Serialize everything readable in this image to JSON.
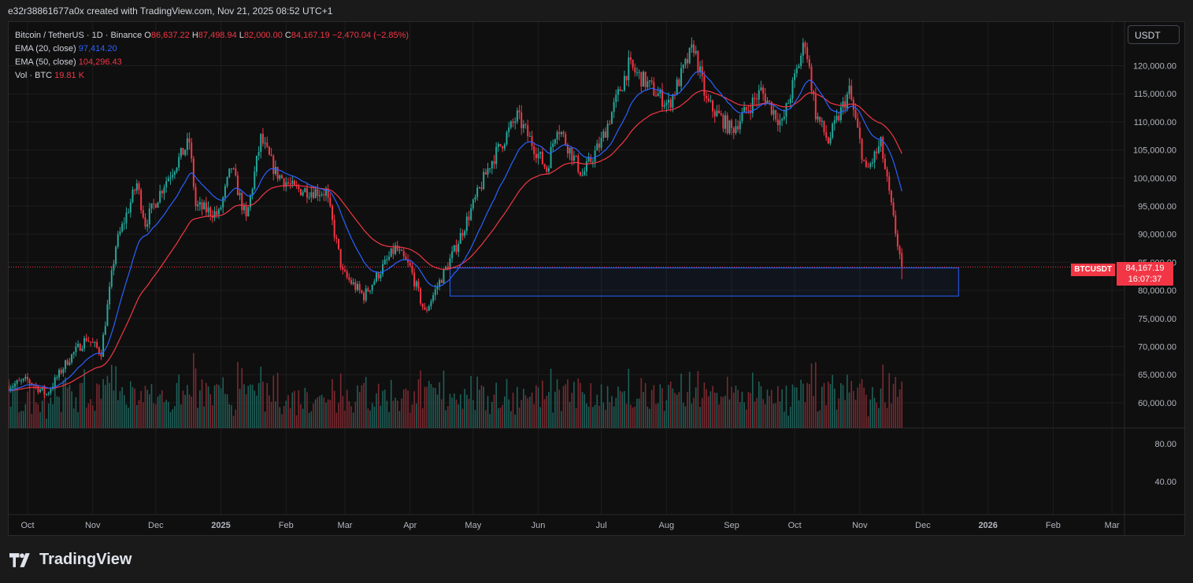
{
  "caption": "e32r38861677a0x created with TradingView.com, Nov 21, 2025 08:52 UTC+1",
  "legend": {
    "symbol": "Bitcoin / TetherUS · 1D · Binance",
    "o_label": "O",
    "o_value": "86,637.22",
    "h_label": "H",
    "h_value": "87,498.94",
    "l_label": "L",
    "l_value": "82,000.00",
    "c_label": "C",
    "c_value": "84,167.19",
    "change": "−2,470.04 (−2.85%)",
    "ema20_label": "EMA (20, close)",
    "ema20_value": "97,414.20",
    "ema50_label": "EMA (50, close)",
    "ema50_value": "104,296.43",
    "vol_label": "Vol · BTC",
    "vol_value": "19.81 K"
  },
  "unit_button": "USDT",
  "price_tag": {
    "symbol": "BTCUSDT",
    "price": "84,167.19",
    "countdown": "16:07:37"
  },
  "brand": "TradingView",
  "colors": {
    "up": "#26a69a",
    "down": "#f23645",
    "ema20": "#2962ff",
    "ema50": "#f23645",
    "zone": "#2962ff"
  },
  "chart_data": {
    "type": "candlestick",
    "title": "Bitcoin / TetherUS · 1D · Binance",
    "x_ticks": [
      "Oct",
      "Nov",
      "Dec",
      "2025",
      "Feb",
      "Mar",
      "Apr",
      "May",
      "Jun",
      "Jul",
      "Aug",
      "Sep",
      "Oct",
      "Nov",
      "Dec",
      "2026",
      "Feb",
      "Mar"
    ],
    "y_ticks": [
      "120,000.00",
      "115,000.00",
      "110,000.00",
      "105,000.00",
      "100,000.00",
      "95,000.00",
      "90,000.00",
      "85,000.00",
      "80,000.00",
      "75,000.00",
      "70,000.00",
      "65,000.00",
      "60,000.00"
    ],
    "volume_ticks": [
      "80.00",
      "40.00"
    ],
    "ylim": [
      56500,
      126500
    ],
    "last_price": 84167.19,
    "price_path": [
      [
        "2024-09-22",
        63000
      ],
      [
        "2024-10-01",
        64000
      ],
      [
        "2024-10-10",
        61500
      ],
      [
        "2024-10-20",
        67500
      ],
      [
        "2024-10-29",
        71500
      ],
      [
        "2024-11-05",
        69000
      ],
      [
        "2024-11-12",
        88000
      ],
      [
        "2024-11-22",
        99000
      ],
      [
        "2024-11-26",
        92000
      ],
      [
        "2024-12-05",
        99000
      ],
      [
        "2024-12-17",
        106500
      ],
      [
        "2024-12-20",
        95000
      ],
      [
        "2024-12-31",
        93500
      ],
      [
        "2025-01-06",
        102000
      ],
      [
        "2025-01-13",
        92500
      ],
      [
        "2025-01-20",
        107000
      ],
      [
        "2025-01-27",
        101000
      ],
      [
        "2025-02-05",
        98000
      ],
      [
        "2025-02-20",
        97500
      ],
      [
        "2025-02-28",
        83000
      ],
      [
        "2025-03-10",
        79000
      ],
      [
        "2025-03-25",
        87500
      ],
      [
        "2025-04-01",
        84000
      ],
      [
        "2025-04-08",
        76000
      ],
      [
        "2025-04-22",
        87000
      ],
      [
        "2025-05-09",
        102500
      ],
      [
        "2025-05-22",
        111000
      ],
      [
        "2025-06-05",
        101500
      ],
      [
        "2025-06-10",
        109500
      ],
      [
        "2025-06-22",
        100500
      ],
      [
        "2025-07-01",
        106500
      ],
      [
        "2025-07-14",
        120000
      ],
      [
        "2025-08-02",
        113000
      ],
      [
        "2025-08-14",
        123500
      ],
      [
        "2025-08-20",
        113500
      ],
      [
        "2025-09-01",
        108500
      ],
      [
        "2025-09-15",
        115500
      ],
      [
        "2025-09-25",
        109500
      ],
      [
        "2025-10-06",
        124500
      ],
      [
        "2025-10-11",
        111500
      ],
      [
        "2025-10-17",
        106500
      ],
      [
        "2025-10-27",
        115500
      ],
      [
        "2025-11-04",
        101000
      ],
      [
        "2025-11-11",
        106000
      ],
      [
        "2025-11-17",
        92500
      ],
      [
        "2025-11-21",
        84167
      ]
    ],
    "ema20": {
      "label": "EMA (20, close)",
      "last": 97414.2
    },
    "ema50": {
      "label": "EMA (50, close)",
      "last": 104296.43
    },
    "support_zone": {
      "from": "2025-04-20",
      "to": "2025-12-18",
      "top": 84000,
      "bottom": 79000
    }
  }
}
